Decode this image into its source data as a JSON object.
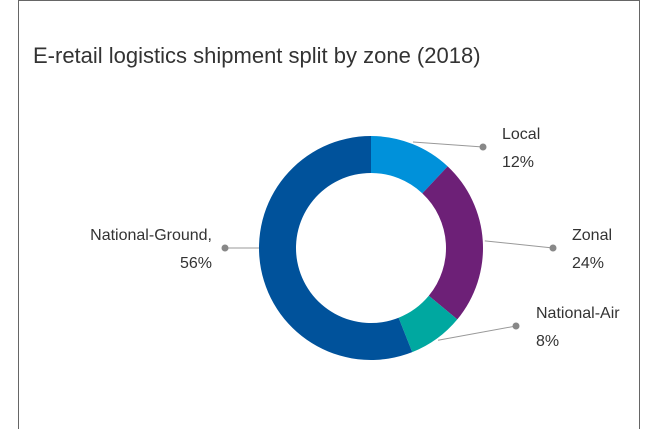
{
  "chart_data": {
    "type": "donut",
    "title": "E-retail logistics shipment split by zone (2018)",
    "categories": [
      "Local",
      "Zonal",
      "National-Air",
      "National-Ground,"
    ],
    "values": [
      12,
      24,
      8,
      56
    ],
    "value_labels": [
      "12%",
      "24%",
      "8%",
      "56%"
    ],
    "colors": [
      "#0091da",
      "#6d2077",
      "#00a8a0",
      "#00529b"
    ]
  }
}
